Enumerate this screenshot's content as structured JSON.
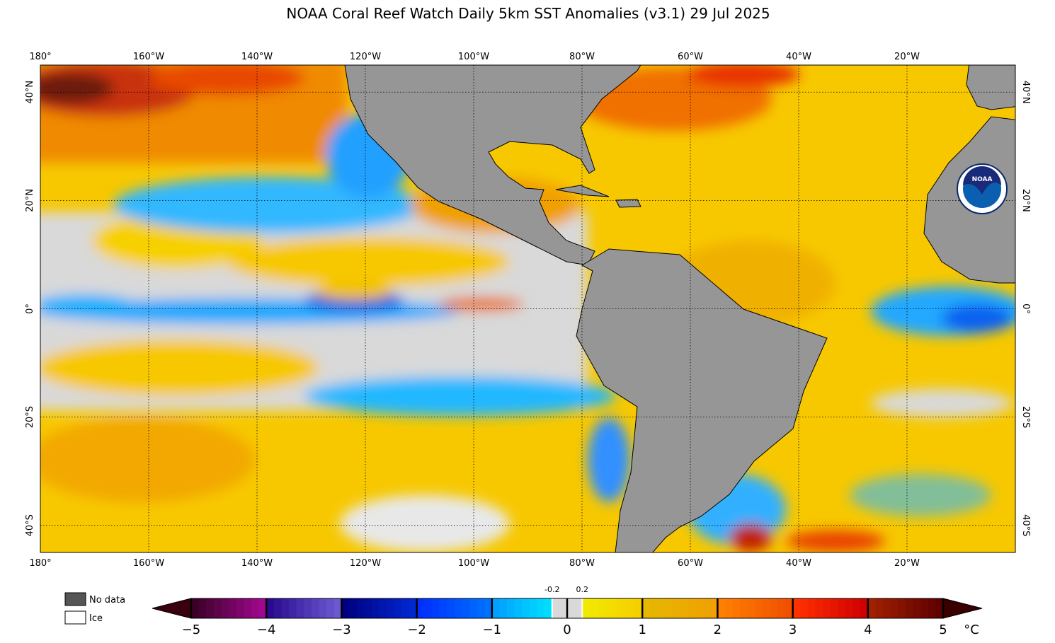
{
  "title": "NOAA Coral Reef Watch Daily 5km SST Anomalies  (v3.1)   29 Jul 2025",
  "logo_text": "NOAA",
  "map": {
    "xlim": [
      -180,
      0
    ],
    "ylim": [
      -45,
      45
    ],
    "xticks": [
      {
        "value": -180,
        "label": "180°"
      },
      {
        "value": -160,
        "label": "160°W"
      },
      {
        "value": -140,
        "label": "140°W"
      },
      {
        "value": -120,
        "label": "120°W"
      },
      {
        "value": -100,
        "label": "100°W"
      },
      {
        "value": -80,
        "label": "80°W"
      },
      {
        "value": -60,
        "label": "60°W"
      },
      {
        "value": -40,
        "label": "40°W"
      },
      {
        "value": -20,
        "label": "20°W"
      }
    ],
    "yticks": [
      {
        "value": 40,
        "label": "40°N"
      },
      {
        "value": 20,
        "label": "20°N"
      },
      {
        "value": 0,
        "label": "0°"
      },
      {
        "value": -20,
        "label": "20°S"
      },
      {
        "value": -40,
        "label": "40°S"
      }
    ],
    "grid": true
  },
  "legend": [
    {
      "label": "No data",
      "color": "#555555"
    },
    {
      "label": "Ice",
      "color": "#ffffff"
    }
  ],
  "colorbar": {
    "lim": [
      -5,
      5
    ],
    "unit": "°C",
    "ticks": [
      {
        "value": -5,
        "label": "−5"
      },
      {
        "value": -4,
        "label": "−4"
      },
      {
        "value": -3,
        "label": "−3"
      },
      {
        "value": -2,
        "label": "−2"
      },
      {
        "value": -1,
        "label": "−1"
      },
      0,
      1,
      2,
      3,
      4,
      5
    ],
    "minor_ticks": [
      -0.2,
      0.2
    ],
    "band_colors": [
      [
        "#3a0028",
        "#a0088e"
      ],
      [
        "#2a0a90",
        "#6a5ad0"
      ],
      [
        "#000080",
        "#0028d0"
      ],
      [
        "#0030ff",
        "#0070ff"
      ],
      [
        "#00a0ff",
        "#00f0ff"
      ],
      [
        "#f0f000",
        "#f5d000"
      ],
      [
        "#e6b800",
        "#f0a000"
      ],
      [
        "#ff8000",
        "#f05000"
      ],
      [
        "#ff3000",
        "#d00000"
      ],
      [
        "#a02000",
        "#600000"
      ]
    ],
    "neutral_color": "#d9d9d9",
    "low_color": "#3a0010",
    "high_color": "#3a0000"
  }
}
